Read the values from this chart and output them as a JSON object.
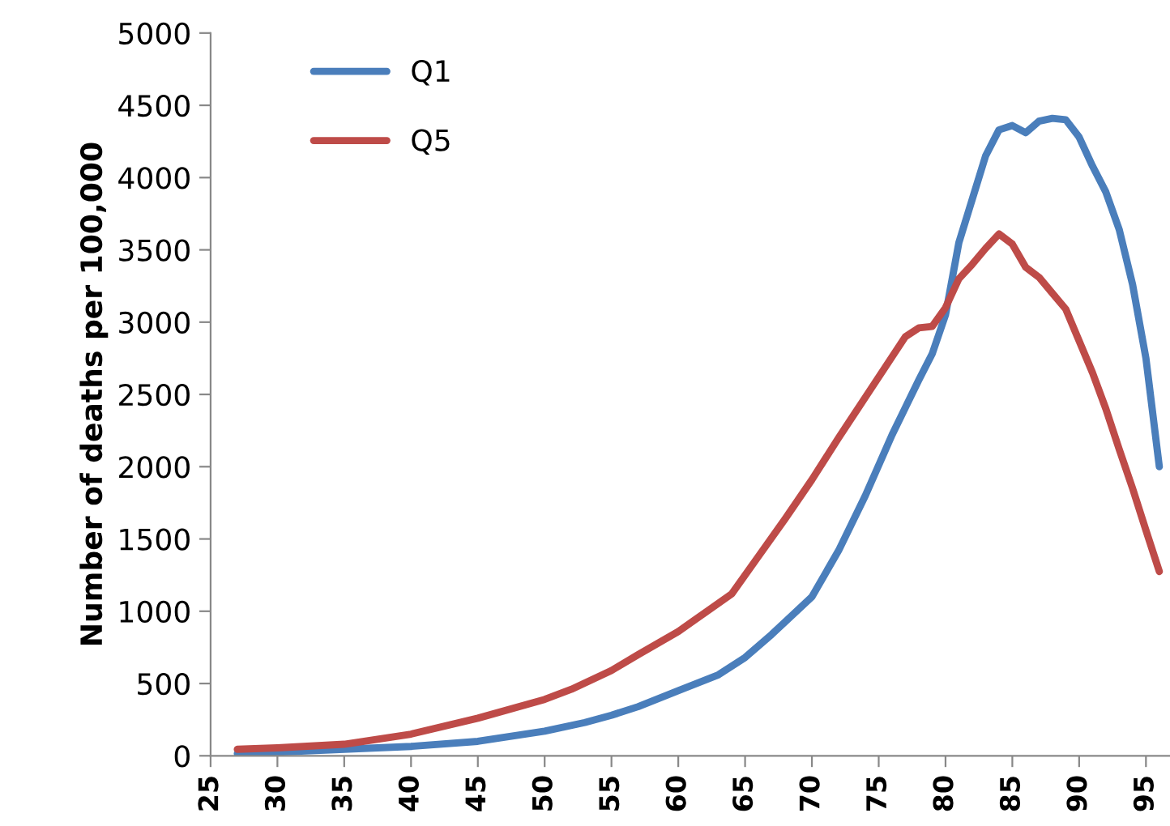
{
  "chart_data": {
    "type": "line",
    "ylabel": "Number of deaths per 100,000",
    "xlim": [
      25,
      96.8
    ],
    "xticks": [
      25,
      30,
      35,
      40,
      45,
      50,
      55,
      60,
      65,
      70,
      75,
      80,
      85,
      90,
      95
    ],
    "ylim": [
      0,
      5000
    ],
    "yticks": [
      0,
      500,
      1000,
      1500,
      2000,
      2500,
      3000,
      3500,
      4000,
      4500,
      5000
    ],
    "grid": false,
    "legend": "top left",
    "marker": "none",
    "line_style": "solid",
    "series": [
      {
        "name": "Q1",
        "color": "#4a7ebb",
        "x": [
          27,
          30,
          35,
          40,
          45,
          50,
          53,
          55,
          57,
          60,
          63,
          65,
          67,
          70,
          72,
          74,
          76,
          78,
          79,
          80,
          81,
          82,
          83,
          84,
          85,
          86,
          87,
          88,
          89,
          90,
          91,
          92,
          93,
          94,
          95,
          96
        ],
        "values": [
          15,
          25,
          45,
          65,
          100,
          170,
          230,
          280,
          340,
          450,
          560,
          680,
          840,
          1100,
          1420,
          1800,
          2220,
          2600,
          2780,
          3050,
          3550,
          3850,
          4150,
          4330,
          4360,
          4310,
          4390,
          4410,
          4400,
          4280,
          4080,
          3900,
          3640,
          3260,
          2750,
          2000
        ]
      },
      {
        "name": "Q5",
        "color": "#be4b48",
        "x": [
          27,
          30,
          35,
          40,
          45,
          50,
          52,
          55,
          57,
          60,
          62,
          64,
          66,
          68,
          70,
          72,
          74,
          76,
          77,
          78,
          79,
          80,
          81,
          82,
          83,
          84,
          85,
          86,
          87,
          88,
          89,
          90,
          91,
          92,
          93,
          94,
          95,
          96
        ],
        "values": [
          45,
          55,
          80,
          150,
          260,
          390,
          460,
          590,
          700,
          860,
          990,
          1120,
          1380,
          1640,
          1910,
          2200,
          2480,
          2760,
          2900,
          2960,
          2970,
          3100,
          3300,
          3400,
          3510,
          3610,
          3540,
          3380,
          3310,
          3200,
          3090,
          2870,
          2650,
          2400,
          2120,
          1850,
          1560,
          1275
        ]
      }
    ]
  }
}
